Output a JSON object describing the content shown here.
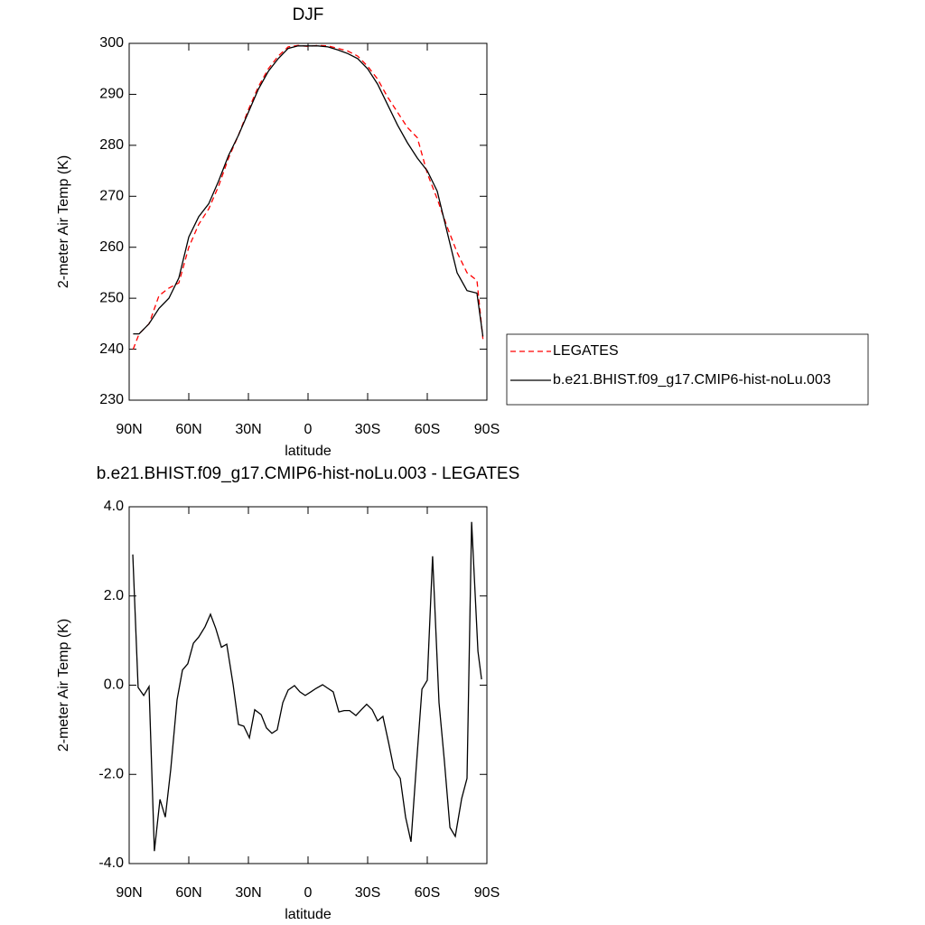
{
  "chart_data": [
    {
      "type": "line",
      "title": "DJF",
      "xlabel": "latitude",
      "ylabel": "2-meter Air Temp (K)",
      "x": [
        88,
        85,
        80,
        75,
        70,
        65,
        60,
        55,
        50,
        45,
        40,
        35,
        30,
        25,
        20,
        15,
        10,
        5,
        0,
        -5,
        -10,
        -15,
        -20,
        -25,
        -30,
        -35,
        -40,
        -45,
        -50,
        -55,
        -60,
        -65,
        -70,
        -75,
        -80,
        -85,
        -88
      ],
      "series": [
        {
          "name": "LEGATES",
          "color": "#ff0000",
          "line_style": "dashed",
          "values": [
            240,
            243,
            245,
            250.5,
            252,
            253,
            260,
            264.5,
            267.5,
            272,
            277.5,
            282,
            287,
            291.5,
            295,
            297.5,
            299.3,
            299.6,
            299.4,
            299.6,
            299.5,
            299,
            298.5,
            297.5,
            295.5,
            293,
            289.5,
            286.5,
            283.5,
            281.5,
            274.5,
            269.5,
            264,
            259,
            255,
            253.5,
            242
          ]
        },
        {
          "name": "b.e21.BHIST.f09_g17.CMIP6-hist-noLu.003",
          "color": "#000000",
          "line_style": "solid",
          "values": [
            243,
            243,
            245,
            248,
            250,
            254,
            262,
            266,
            268.5,
            273,
            278,
            282,
            286.5,
            291,
            294.5,
            297,
            299,
            299.5,
            299.5,
            299.5,
            299.3,
            298.7,
            298,
            297,
            295,
            292,
            288,
            284,
            280.5,
            277.5,
            275,
            271,
            263,
            255,
            251.5,
            251,
            242.5
          ]
        }
      ],
      "xlim": [
        90,
        -90
      ],
      "xticks": [
        {
          "value": 90,
          "label": "90N"
        },
        {
          "value": 60,
          "label": "60N"
        },
        {
          "value": 30,
          "label": "30N"
        },
        0,
        {
          "value": -30,
          "label": "30S"
        },
        {
          "value": -60,
          "label": "60S"
        },
        {
          "value": -90,
          "label": "90S"
        }
      ],
      "ylim": [
        230,
        300
      ],
      "yticks": [
        230,
        240,
        250,
        260,
        270,
        280,
        290,
        300
      ],
      "legend": "right"
    },
    {
      "type": "line",
      "title": "b.e21.BHIST.f09_g17.CMIP6-hist-noLu.003 - LEGATES",
      "xlabel": "latitude",
      "ylabel": "2-meter Air Temp (K)",
      "x": [
        88.2,
        85.5,
        82.7,
        80.0,
        77.3,
        74.5,
        71.8,
        69.1,
        65.9,
        63.2,
        60.5,
        57.7,
        55.0,
        51.8,
        49.1,
        46.4,
        43.6,
        40.9,
        37.7,
        35.0,
        32.3,
        29.5,
        26.8,
        23.6,
        20.9,
        18.2,
        15.5,
        12.7,
        10.0,
        6.8,
        4.1,
        1.4,
        -1.4,
        -4.1,
        -7.3,
        -10.0,
        -12.7,
        -15.5,
        -18.2,
        -20.9,
        -24.1,
        -26.8,
        -29.5,
        -32.3,
        -35.0,
        -37.7,
        -40.5,
        -43.2,
        -46.4,
        -49.1,
        -51.8,
        -54.5,
        -57.3,
        -60.0,
        -62.7,
        -65.9,
        -68.6,
        -71.4,
        -74.1,
        -77.3,
        -80.0,
        -82.3,
        -85.5,
        -87.3
      ],
      "values": [
        2.93,
        -0.05,
        -0.23,
        -0.03,
        -3.72,
        -2.56,
        -2.96,
        -1.89,
        -0.33,
        0.34,
        0.48,
        0.94,
        1.08,
        1.31,
        1.59,
        1.27,
        0.85,
        0.92,
        0.01,
        -0.88,
        -0.92,
        -1.18,
        -0.55,
        -0.66,
        -0.96,
        -1.08,
        -1.0,
        -0.39,
        -0.11,
        -0.01,
        -0.15,
        -0.23,
        -0.15,
        -0.07,
        0.01,
        -0.07,
        -0.15,
        -0.6,
        -0.57,
        -0.57,
        -0.68,
        -0.55,
        -0.43,
        -0.55,
        -0.8,
        -0.7,
        -1.28,
        -1.87,
        -2.09,
        -2.96,
        -3.51,
        -1.81,
        -0.09,
        0.11,
        2.89,
        -0.39,
        -1.69,
        -3.19,
        -3.39,
        -2.54,
        -2.09,
        3.66,
        0.76,
        0.13
      ],
      "color": "#000000",
      "xlim": [
        90,
        -90
      ],
      "xticks": [
        {
          "value": 90,
          "label": "90N"
        },
        {
          "value": 60,
          "label": "60N"
        },
        {
          "value": 30,
          "label": "30N"
        },
        0,
        {
          "value": -30,
          "label": "30S"
        },
        {
          "value": -60,
          "label": "60S"
        },
        {
          "value": -90,
          "label": "90S"
        }
      ],
      "ylim": [
        -4,
        4
      ],
      "yticks": [
        {
          "value": -4,
          "label": "-4.0"
        },
        {
          "value": -2,
          "label": "-2.0"
        },
        {
          "value": 0,
          "label": "0.0"
        },
        {
          "value": 2,
          "label": "2.0"
        },
        {
          "value": 4,
          "label": "4.0"
        }
      ]
    }
  ]
}
